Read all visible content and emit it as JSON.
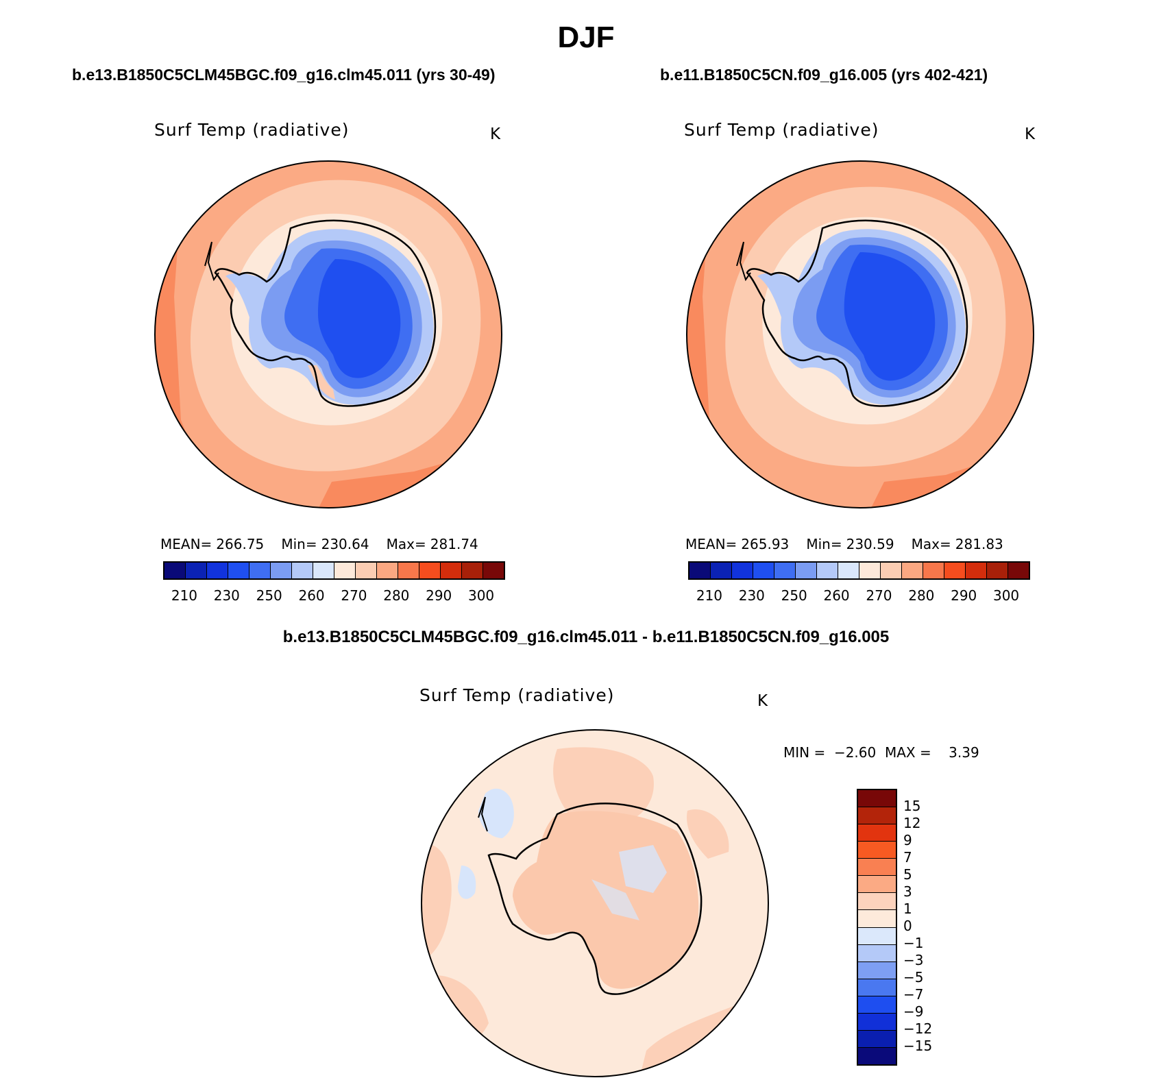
{
  "title": "DJF",
  "panels": [
    {
      "case_title": "b.e13.B1850C5CLM45BGC.f09_g16.clm45.011 (yrs 30-49)",
      "variable": "Surf Temp (radiative)",
      "units": "K",
      "mean_label": "MEAN=",
      "mean": "266.75",
      "min_label": "Min=",
      "min": "230.64",
      "max_label": "Max=",
      "max": "281.74"
    },
    {
      "case_title": "b.e11.B1850C5CN.f09_g16.005 (yrs 402-421)",
      "variable": "Surf Temp (radiative)",
      "units": "K",
      "mean_label": "MEAN=",
      "mean": "265.93",
      "min_label": "Min=",
      "min": "230.59",
      "max_label": "Max=",
      "max": "281.83"
    }
  ],
  "abs_colorbar": {
    "colors": [
      "#0a0a78",
      "#0b22b4",
      "#1133dd",
      "#1f4ff0",
      "#3f6ef2",
      "#7b9cf2",
      "#b4c9f8",
      "#dae7fb",
      "#fde9da",
      "#fbcdb3",
      "#fba882",
      "#f7774b",
      "#f64d1e",
      "#d42d0c",
      "#a82009",
      "#780808"
    ],
    "tick_labels": [
      "210",
      "230",
      "250",
      "260",
      "270",
      "280",
      "290",
      "300"
    ]
  },
  "diff_panel": {
    "title": "b.e13.B1850C5CLM45BGC.f09_g16.clm45.011 - b.e11.B1850C5CN.f09_g16.005",
    "variable": "Surf Temp (radiative)",
    "units": "K",
    "min_label": "MIN =",
    "min": "−2.60",
    "max_label": "MAX =",
    "max": "3.39"
  },
  "diff_colorbar": {
    "colors": [
      "#780808",
      "#b3240a",
      "#e2340f",
      "#f75a22",
      "#f98052",
      "#fbaa84",
      "#fdd3bd",
      "#fdeadb",
      "#dbe8fb",
      "#b4c9f8",
      "#7e9ff3",
      "#4a78f0",
      "#1e4ef0",
      "#1130d8",
      "#0a1fb0",
      "#0a0a7a"
    ],
    "tick_labels": [
      "15",
      "12",
      "9",
      "7",
      "5",
      "3",
      "1",
      "0",
      "−1",
      "−3",
      "−5",
      "−7",
      "−9",
      "−12",
      "−15"
    ]
  },
  "map_colors": {
    "outer_warm": "#f98a5e",
    "warm": "#fbaa84",
    "mild": "#fcccb1",
    "cool": "#fde9da",
    "ice_edge": "#b4c9f8",
    "ice_mid": "#7b9cf2",
    "ice_inner": "#3f6ef2",
    "ice_core": "#1f4ff0",
    "diff_bg": "#fde9da",
    "diff_pos": "#fcd0b8",
    "diff_neg": "#d7e5fb"
  }
}
